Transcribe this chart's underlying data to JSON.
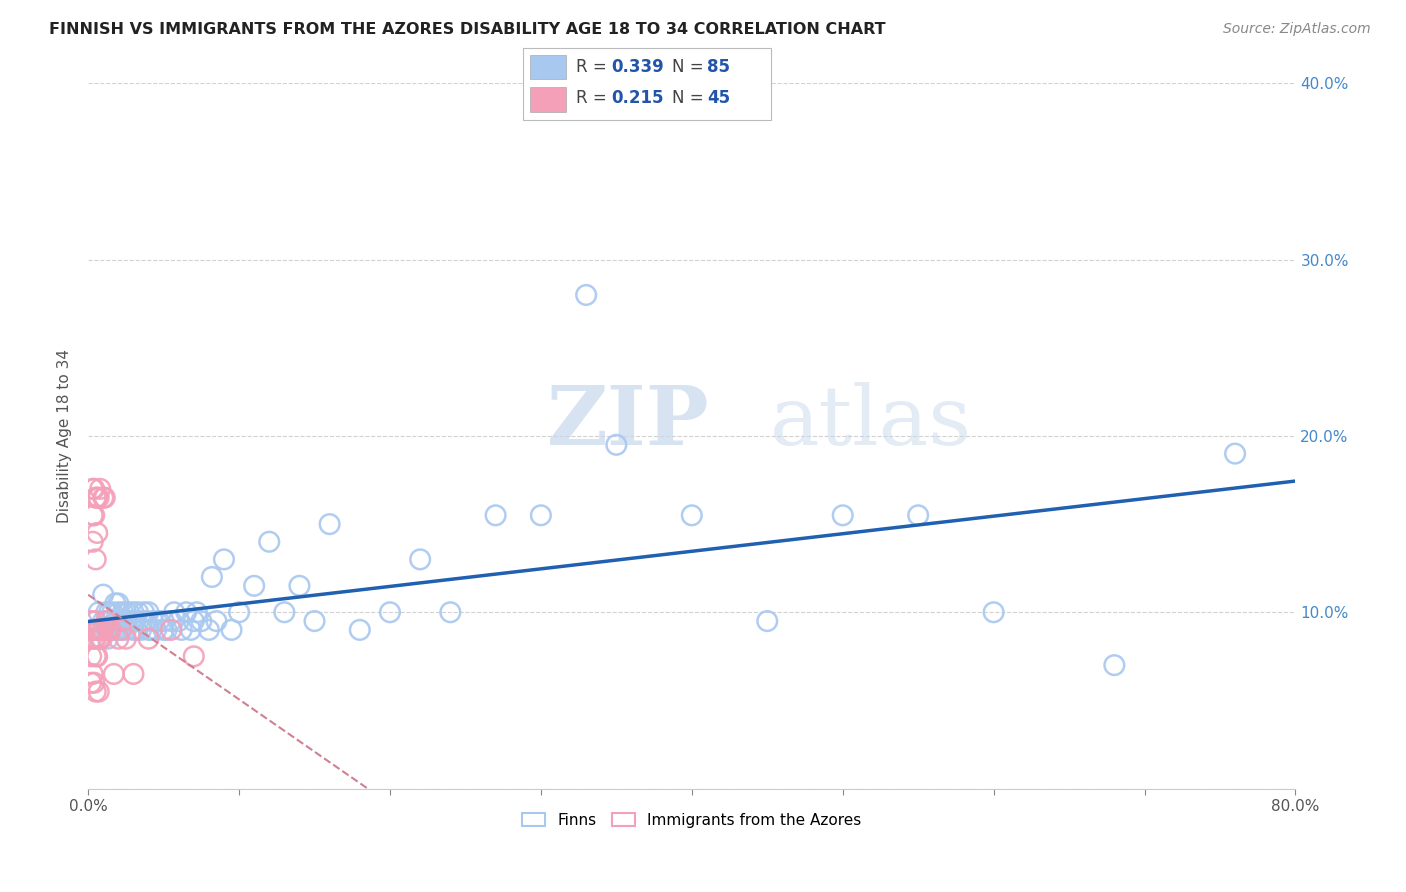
{
  "title": "FINNISH VS IMMIGRANTS FROM THE AZORES DISABILITY AGE 18 TO 34 CORRELATION CHART",
  "source": "Source: ZipAtlas.com",
  "ylabel": "Disability Age 18 to 34",
  "xlim": [
    0.0,
    0.8
  ],
  "ylim": [
    0.0,
    0.4
  ],
  "R_finns": 0.339,
  "N_finns": 85,
  "R_azores": 0.215,
  "N_azores": 45,
  "color_finns": "#A8C8F0",
  "color_azores": "#F4A0B8",
  "trendline_finns_color": "#2060B0",
  "trendline_azores_color": "#D08090",
  "watermark_zip": "ZIP",
  "watermark_atlas": "atlas",
  "finns_x": [
    0.005,
    0.007,
    0.008,
    0.01,
    0.01,
    0.01,
    0.012,
    0.012,
    0.013,
    0.013,
    0.014,
    0.015,
    0.015,
    0.016,
    0.017,
    0.018,
    0.018,
    0.019,
    0.02,
    0.02,
    0.02,
    0.021,
    0.022,
    0.023,
    0.024,
    0.025,
    0.025,
    0.026,
    0.027,
    0.028,
    0.03,
    0.03,
    0.03,
    0.031,
    0.032,
    0.033,
    0.035,
    0.036,
    0.037,
    0.038,
    0.04,
    0.04,
    0.042,
    0.043,
    0.045,
    0.047,
    0.05,
    0.05,
    0.052,
    0.055,
    0.057,
    0.06,
    0.062,
    0.065,
    0.068,
    0.07,
    0.072,
    0.075,
    0.08,
    0.082,
    0.085,
    0.09,
    0.095,
    0.1,
    0.11,
    0.12,
    0.13,
    0.14,
    0.15,
    0.16,
    0.18,
    0.2,
    0.22,
    0.24,
    0.27,
    0.3,
    0.33,
    0.35,
    0.4,
    0.45,
    0.5,
    0.55,
    0.6,
    0.68,
    0.76
  ],
  "finns_y": [
    0.09,
    0.1,
    0.085,
    0.09,
    0.095,
    0.11,
    0.09,
    0.1,
    0.085,
    0.095,
    0.1,
    0.09,
    0.095,
    0.1,
    0.09,
    0.095,
    0.105,
    0.09,
    0.09,
    0.1,
    0.105,
    0.09,
    0.095,
    0.1,
    0.095,
    0.09,
    0.1,
    0.095,
    0.1,
    0.095,
    0.09,
    0.095,
    0.1,
    0.095,
    0.09,
    0.1,
    0.09,
    0.095,
    0.1,
    0.095,
    0.09,
    0.1,
    0.09,
    0.095,
    0.09,
    0.095,
    0.09,
    0.095,
    0.09,
    0.095,
    0.1,
    0.095,
    0.09,
    0.1,
    0.09,
    0.095,
    0.1,
    0.095,
    0.09,
    0.12,
    0.095,
    0.13,
    0.09,
    0.1,
    0.115,
    0.14,
    0.1,
    0.115,
    0.095,
    0.15,
    0.09,
    0.1,
    0.13,
    0.1,
    0.155,
    0.155,
    0.28,
    0.195,
    0.155,
    0.095,
    0.155,
    0.155,
    0.1,
    0.07,
    0.19
  ],
  "azores_x": [
    0.002,
    0.002,
    0.002,
    0.002,
    0.003,
    0.003,
    0.003,
    0.003,
    0.003,
    0.004,
    0.004,
    0.004,
    0.004,
    0.004,
    0.005,
    0.005,
    0.005,
    0.005,
    0.005,
    0.005,
    0.006,
    0.006,
    0.006,
    0.006,
    0.007,
    0.007,
    0.007,
    0.007,
    0.008,
    0.008,
    0.009,
    0.01,
    0.01,
    0.011,
    0.012,
    0.013,
    0.015,
    0.017,
    0.02,
    0.022,
    0.025,
    0.03,
    0.04,
    0.055,
    0.07
  ],
  "azores_y": [
    0.095,
    0.085,
    0.075,
    0.06,
    0.17,
    0.155,
    0.14,
    0.09,
    0.065,
    0.17,
    0.155,
    0.09,
    0.085,
    0.06,
    0.165,
    0.13,
    0.095,
    0.085,
    0.075,
    0.055,
    0.165,
    0.145,
    0.09,
    0.075,
    0.165,
    0.09,
    0.085,
    0.055,
    0.17,
    0.09,
    0.085,
    0.165,
    0.09,
    0.165,
    0.095,
    0.09,
    0.09,
    0.065,
    0.085,
    0.09,
    0.085,
    0.065,
    0.085,
    0.09,
    0.075
  ]
}
